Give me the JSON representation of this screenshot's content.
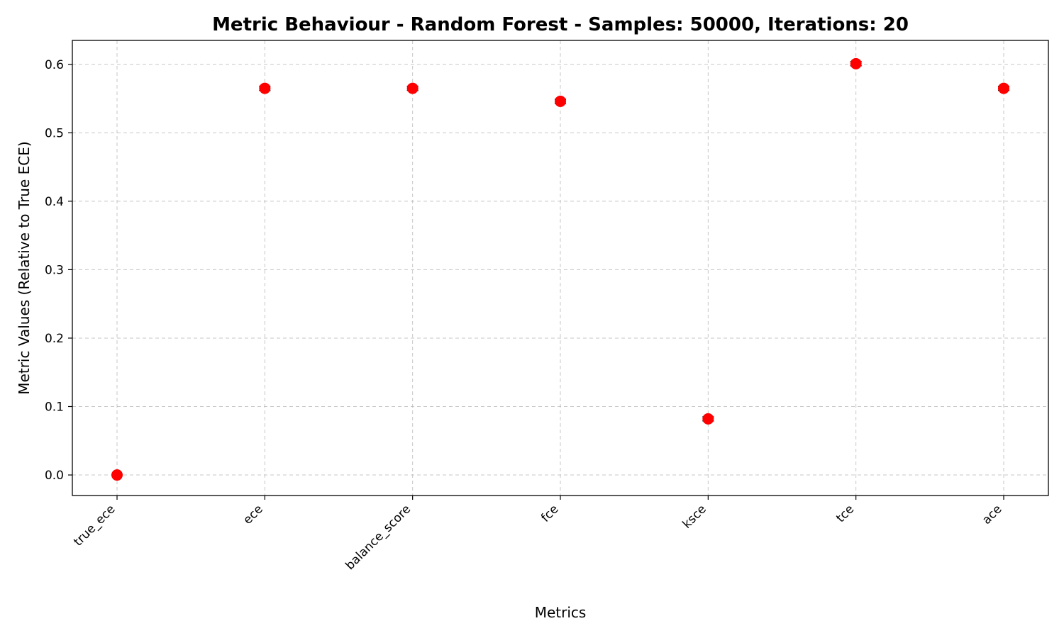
{
  "chart_data": {
    "type": "scatter",
    "title": "Metric Behaviour - Random Forest - Samples: 50000, Iterations: 20",
    "xlabel": "Metrics",
    "ylabel": "Metric Values (Relative to True ECE)",
    "categories": [
      "true_ece",
      "ece",
      "balance_score",
      "fce",
      "ksce",
      "tce",
      "ace"
    ],
    "values": [
      0.0,
      0.565,
      0.565,
      0.546,
      0.082,
      0.601,
      0.565
    ],
    "error": [
      0.0,
      0.003,
      0.003,
      0.003,
      0.003,
      0.003,
      0.003
    ],
    "ylim": [
      -0.03,
      0.635
    ],
    "yticks": [
      0.0,
      0.1,
      0.2,
      0.3,
      0.4,
      0.5,
      0.6
    ],
    "ytick_labels": [
      "0.0",
      "0.1",
      "0.2",
      "0.3",
      "0.4",
      "0.5",
      "0.6"
    ],
    "grid": true,
    "marker_color": "#ff0000",
    "errorbar_color": "#000000"
  }
}
